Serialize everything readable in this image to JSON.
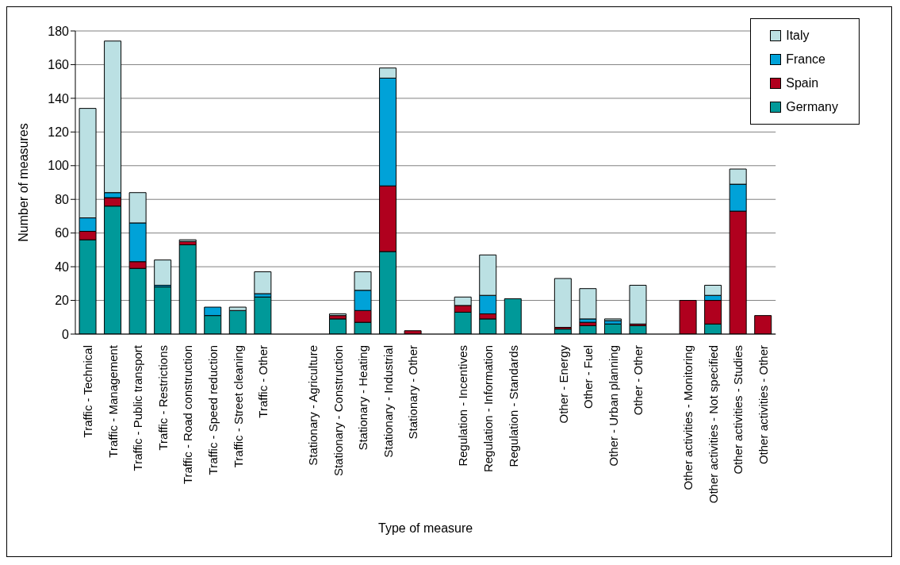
{
  "chart_data": {
    "type": "bar",
    "stacked": true,
    "xlabel": "Type of measure",
    "ylabel": "Number of measures",
    "categories": [
      "Traffic - Technical",
      "Traffic - Management",
      "Traffic - Public transport",
      "Traffic - Restrictions",
      "Traffic - Road construction",
      "Traffic - Speed reduction",
      "Traffic - Street cleaning",
      "Traffic - Other",
      null,
      "Stationary - Agriculture",
      "Stationary - Construction",
      "Stationary - Heating",
      "Stationary - Industrial",
      "Stationary - Other",
      null,
      "Regulation - Incentives",
      "Regulation - Information",
      "Regulation - Standards",
      null,
      "Other - Energy",
      "Other - Fuel",
      "Other - Urban planning",
      "Other - Other",
      null,
      "Other activities - Monitoring",
      "Other activities - Not specified",
      "Other activities - Studies",
      "Other activities - Other"
    ],
    "series": [
      {
        "name": "Germany",
        "color": "#009999",
        "values": [
          56,
          76,
          39,
          28,
          53,
          11,
          14,
          22,
          null,
          0,
          9,
          7,
          49,
          null,
          null,
          13,
          9,
          21,
          null,
          3,
          5,
          6,
          5,
          null,
          0,
          6,
          0,
          null
        ]
      },
      {
        "name": "Spain",
        "color": "#b0001e",
        "values": [
          5,
          5,
          4,
          0,
          2,
          0,
          0,
          0,
          null,
          0,
          2,
          7,
          39,
          2,
          null,
          4,
          3,
          0,
          null,
          1,
          2,
          0,
          1,
          null,
          20,
          14,
          73,
          11
        ]
      },
      {
        "name": "France",
        "color": "#00a2d8",
        "values": [
          8,
          3,
          23,
          1,
          0,
          5,
          0,
          2,
          null,
          0,
          0,
          12,
          64,
          0,
          null,
          0,
          11,
          0,
          null,
          0,
          2,
          2,
          0,
          null,
          0,
          3,
          16,
          0
        ]
      },
      {
        "name": "Italy",
        "color": "#bbe0e3",
        "values": [
          65,
          90,
          18,
          15,
          1,
          0,
          2,
          13,
          null,
          0,
          1,
          11,
          6,
          0,
          null,
          5,
          24,
          0,
          null,
          29,
          18,
          1,
          23,
          null,
          0,
          6,
          9,
          0
        ]
      }
    ],
    "ylim": [
      0,
      180
    ],
    "yticks": [
      0,
      20,
      40,
      60,
      80,
      100,
      120,
      140,
      160,
      180
    ],
    "grid": "y",
    "legend": "top right"
  }
}
